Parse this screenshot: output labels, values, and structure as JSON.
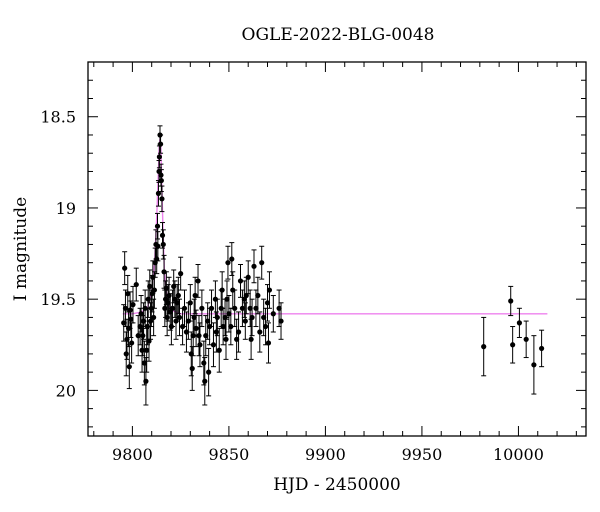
{
  "chart_data": {
    "type": "scatter",
    "title": "OGLE-2022-BLG-0048",
    "xlabel": "HJD - 2450000",
    "ylabel": "I magnitude",
    "xlim": [
      9777,
      10035
    ],
    "ylim": [
      20.25,
      18.2
    ],
    "y_inverted": true,
    "x_ticks": [
      9800,
      9850,
      9900,
      9950,
      10000
    ],
    "y_ticks": [
      18.5,
      19,
      19.5,
      20
    ],
    "x_minor_step": 10,
    "y_minor_step": 0.1,
    "grid": false,
    "colors": {
      "data": "#000000",
      "model": "#ee82ee"
    },
    "series": [
      {
        "kind": "data",
        "points": [
          [
            9795.5,
            19.63,
            0.1
          ],
          [
            9796.0,
            19.33,
            0.09
          ],
          [
            9796.4,
            19.55,
            0.1
          ],
          [
            9796.8,
            19.8,
            0.12
          ],
          [
            9797.2,
            19.72,
            0.11
          ],
          [
            9797.6,
            19.47,
            0.1
          ],
          [
            9798.0,
            19.66,
            0.1
          ],
          [
            9798.4,
            19.87,
            0.12
          ],
          [
            9798.8,
            19.56,
            0.1
          ],
          [
            9799.2,
            19.61,
            0.1
          ],
          [
            9799.6,
            19.74,
            0.11
          ],
          [
            9800.3,
            19.53,
            0.1
          ],
          [
            9802.0,
            19.42,
            0.09
          ],
          [
            9803.0,
            19.7,
            0.11
          ],
          [
            9804.0,
            19.65,
            0.1
          ],
          [
            9804.5,
            19.58,
            0.1
          ],
          [
            9805.0,
            19.78,
            0.12
          ],
          [
            9805.4,
            19.7,
            0.11
          ],
          [
            9805.8,
            19.62,
            0.1
          ],
          [
            9806.2,
            19.85,
            0.12
          ],
          [
            9806.6,
            19.55,
            0.1
          ],
          [
            9807.0,
            19.95,
            0.13
          ],
          [
            9807.4,
            19.78,
            0.12
          ],
          [
            9807.8,
            19.65,
            0.1
          ],
          [
            9808.2,
            19.5,
            0.1
          ],
          [
            9808.6,
            19.73,
            0.11
          ],
          [
            9809.0,
            19.43,
            0.09
          ],
          [
            9809.4,
            19.62,
            0.1
          ],
          [
            9809.8,
            19.55,
            0.1
          ],
          [
            9810.2,
            19.47,
            0.1
          ],
          [
            9810.6,
            19.38,
            0.09
          ],
          [
            9811.0,
            19.6,
            0.1
          ],
          [
            9811.4,
            19.45,
            0.1
          ],
          [
            9811.8,
            19.3,
            0.08
          ],
          [
            9812.2,
            19.2,
            0.08
          ],
          [
            9812.6,
            19.28,
            0.08
          ],
          [
            9813.0,
            19.1,
            0.07
          ],
          [
            9813.2,
            19.21,
            0.08
          ],
          [
            9813.5,
            18.92,
            0.07
          ],
          [
            9813.8,
            18.8,
            0.06
          ],
          [
            9814.0,
            18.72,
            0.06
          ],
          [
            9814.3,
            18.6,
            0.05
          ],
          [
            9814.6,
            18.65,
            0.05
          ],
          [
            9814.8,
            18.82,
            0.06
          ],
          [
            9815.0,
            18.85,
            0.06
          ],
          [
            9815.3,
            18.95,
            0.07
          ],
          [
            9815.6,
            19.15,
            0.07
          ],
          [
            9816.0,
            19.2,
            0.08
          ],
          [
            9816.4,
            19.35,
            0.09
          ],
          [
            9816.8,
            19.55,
            0.1
          ],
          [
            9817.2,
            19.5,
            0.1
          ],
          [
            9817.6,
            19.44,
            0.09
          ],
          [
            9818.0,
            19.6,
            0.1
          ],
          [
            9818.5,
            19.52,
            0.1
          ],
          [
            9819.0,
            19.48,
            0.1
          ],
          [
            9819.6,
            19.57,
            0.1
          ],
          [
            9820.2,
            19.65,
            0.1
          ],
          [
            9820.8,
            19.55,
            0.1
          ],
          [
            9821.4,
            19.43,
            0.09
          ],
          [
            9822.0,
            19.5,
            0.1
          ],
          [
            9822.6,
            19.62,
            0.1
          ],
          [
            9823.2,
            19.52,
            0.1
          ],
          [
            9823.8,
            19.48,
            0.1
          ],
          [
            9824.4,
            19.6,
            0.1
          ],
          [
            9825.0,
            19.36,
            0.09
          ],
          [
            9826.0,
            19.65,
            0.1
          ],
          [
            9827.0,
            19.55,
            0.1
          ],
          [
            9828.0,
            19.68,
            0.11
          ],
          [
            9829.0,
            19.62,
            0.1
          ],
          [
            9830.0,
            19.52,
            0.1
          ],
          [
            9830.5,
            19.8,
            0.12
          ],
          [
            9831.0,
            19.88,
            0.12
          ],
          [
            9831.5,
            19.7,
            0.11
          ],
          [
            9832.0,
            19.6,
            0.1
          ],
          [
            9832.5,
            19.48,
            0.1
          ],
          [
            9833.0,
            19.66,
            0.1
          ],
          [
            9834.0,
            19.4,
            0.09
          ],
          [
            9834.5,
            19.7,
            0.11
          ],
          [
            9835.0,
            19.75,
            0.12
          ],
          [
            9836.0,
            19.55,
            0.1
          ],
          [
            9837.0,
            19.85,
            0.12
          ],
          [
            9837.5,
            19.95,
            0.13
          ],
          [
            9838.0,
            19.7,
            0.11
          ],
          [
            9839.0,
            19.62,
            0.1
          ],
          [
            9839.5,
            19.9,
            0.13
          ],
          [
            9840.0,
            19.65,
            0.1
          ],
          [
            9841.0,
            19.55,
            0.1
          ],
          [
            9842.0,
            19.75,
            0.12
          ],
          [
            9843.0,
            19.5,
            0.1
          ],
          [
            9843.5,
            19.68,
            0.11
          ],
          [
            9844.0,
            19.6,
            0.1
          ],
          [
            9845.0,
            19.78,
            0.12
          ],
          [
            9846.0,
            19.55,
            0.1
          ],
          [
            9846.5,
            19.45,
            0.1
          ],
          [
            9847.0,
            19.65,
            0.1
          ],
          [
            9848.0,
            19.6,
            0.1
          ],
          [
            9848.5,
            19.72,
            0.11
          ],
          [
            9849.0,
            19.5,
            0.1
          ],
          [
            9849.5,
            19.3,
            0.09
          ],
          [
            9850.0,
            19.58,
            0.1
          ],
          [
            9851.0,
            19.65,
            0.1
          ],
          [
            9851.5,
            19.28,
            0.09
          ],
          [
            9852.0,
            19.45,
            0.1
          ],
          [
            9853.0,
            19.55,
            0.1
          ],
          [
            9854.0,
            19.72,
            0.11
          ],
          [
            9855.0,
            19.68,
            0.11
          ],
          [
            9856.0,
            19.4,
            0.09
          ],
          [
            9857.0,
            19.55,
            0.1
          ],
          [
            9858.0,
            19.5,
            0.1
          ],
          [
            9858.5,
            19.62,
            0.1
          ],
          [
            9859.0,
            19.48,
            0.1
          ],
          [
            9860.0,
            19.38,
            0.09
          ],
          [
            9861.0,
            19.55,
            0.1
          ],
          [
            9861.5,
            19.72,
            0.11
          ],
          [
            9862.0,
            19.6,
            0.1
          ],
          [
            9863.0,
            19.32,
            0.09
          ],
          [
            9864.0,
            19.55,
            0.1
          ],
          [
            9865.0,
            19.48,
            0.1
          ],
          [
            9866.0,
            19.68,
            0.11
          ],
          [
            9867.0,
            19.3,
            0.09
          ],
          [
            9868.0,
            19.6,
            0.1
          ],
          [
            9869.0,
            19.65,
            0.1
          ],
          [
            9870.0,
            19.52,
            0.1
          ],
          [
            9870.5,
            19.74,
            0.11
          ],
          [
            9871.0,
            19.45,
            0.1
          ],
          [
            9873.0,
            19.58,
            0.1
          ],
          [
            9876.0,
            19.55,
            0.1
          ],
          [
            9877.0,
            19.62,
            0.1
          ],
          [
            9982.0,
            19.76,
            0.16
          ],
          [
            9996.0,
            19.51,
            0.08
          ],
          [
            9997.0,
            19.75,
            0.1
          ],
          [
            10000.5,
            19.63,
            0.08
          ],
          [
            10004.0,
            19.72,
            0.1
          ],
          [
            10008.0,
            19.86,
            0.16
          ],
          [
            10012.0,
            19.77,
            0.1
          ]
        ]
      },
      {
        "kind": "model",
        "points": [
          [
            9795,
            19.58
          ],
          [
            9800,
            19.58
          ],
          [
            9805,
            19.57
          ],
          [
            9808,
            19.54
          ],
          [
            9810,
            19.46
          ],
          [
            9811.5,
            19.3
          ],
          [
            9812.5,
            19.08
          ],
          [
            9813.3,
            18.85
          ],
          [
            9813.9,
            18.66
          ],
          [
            9814.3,
            18.62
          ],
          [
            9814.7,
            18.66
          ],
          [
            9815.2,
            18.85
          ],
          [
            9815.8,
            19.1
          ],
          [
            9816.6,
            19.35
          ],
          [
            9818,
            19.5
          ],
          [
            9820,
            19.56
          ],
          [
            9825,
            19.58
          ],
          [
            9850,
            19.58
          ],
          [
            10015,
            19.58
          ]
        ]
      }
    ]
  }
}
